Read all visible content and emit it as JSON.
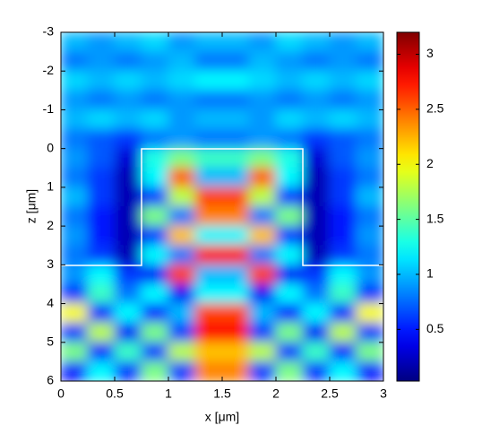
{
  "chart_data": {
    "type": "heatmap",
    "colormap": "jet",
    "xlabel": "x [μm]",
    "ylabel": "z [μm]",
    "x": [
      0,
      0.25,
      0.5,
      0.75,
      1,
      1.25,
      1.5,
      1.75,
      2,
      2.25,
      2.5,
      2.75,
      3
    ],
    "z": [
      -3,
      -2.5,
      -2,
      -1.5,
      -1,
      -0.5,
      0,
      0.5,
      1,
      1.5,
      2,
      2.5,
      3,
      3.5,
      4,
      4.5,
      5,
      5.5,
      6
    ],
    "values": [
      [
        1.0,
        0.9,
        1.0,
        1.1,
        0.9,
        1.0,
        1.0,
        0.9,
        1.1,
        1.0,
        0.9,
        1.0
      ],
      [
        0.8,
        0.9,
        0.8,
        0.9,
        1.0,
        0.8,
        0.8,
        1.0,
        0.9,
        0.8,
        0.9,
        0.8
      ],
      [
        1.1,
        1.0,
        1.1,
        1.0,
        1.1,
        1.2,
        1.2,
        1.1,
        1.0,
        1.1,
        1.0,
        1.1
      ],
      [
        0.9,
        0.8,
        0.9,
        0.8,
        0.9,
        0.8,
        0.8,
        0.9,
        0.8,
        0.9,
        0.8,
        0.9
      ],
      [
        1.0,
        1.1,
        1.0,
        1.1,
        0.9,
        1.0,
        1.0,
        0.9,
        1.1,
        1.0,
        1.1,
        1.0
      ],
      [
        0.8,
        0.7,
        0.6,
        0.8,
        0.9,
        0.8,
        0.8,
        0.9,
        0.8,
        0.6,
        0.7,
        0.8
      ],
      [
        0.9,
        0.7,
        0.3,
        1.3,
        1.6,
        1.4,
        1.4,
        1.6,
        1.3,
        0.3,
        0.7,
        0.9
      ],
      [
        0.8,
        0.6,
        0.2,
        1.2,
        2.5,
        1.0,
        1.0,
        2.5,
        1.2,
        0.2,
        0.6,
        0.8
      ],
      [
        1.0,
        0.6,
        0.2,
        0.6,
        1.8,
        2.6,
        2.6,
        1.8,
        0.6,
        0.2,
        0.6,
        1.0
      ],
      [
        0.8,
        0.5,
        0.2,
        1.6,
        0.8,
        2.4,
        2.4,
        0.8,
        1.6,
        0.2,
        0.5,
        0.8
      ],
      [
        0.9,
        0.5,
        0.2,
        0.6,
        2.2,
        1.2,
        1.2,
        2.2,
        0.6,
        0.2,
        0.5,
        0.9
      ],
      [
        0.8,
        0.6,
        0.2,
        1.2,
        0.8,
        2.8,
        2.8,
        0.8,
        1.2,
        0.2,
        0.6,
        0.8
      ],
      [
        0.9,
        1.2,
        0.6,
        0.4,
        2.6,
        1.0,
        1.0,
        2.6,
        0.4,
        0.6,
        1.2,
        0.9
      ],
      [
        0.6,
        1.4,
        0.8,
        1.2,
        0.4,
        1.2,
        1.2,
        0.4,
        1.2,
        0.8,
        1.4,
        0.6
      ],
      [
        2.0,
        0.5,
        1.2,
        0.5,
        1.0,
        2.6,
        2.6,
        1.0,
        0.5,
        1.2,
        0.5,
        2.0
      ],
      [
        0.6,
        1.8,
        0.4,
        1.6,
        0.6,
        2.8,
        2.8,
        0.6,
        1.6,
        0.4,
        1.8,
        0.6
      ],
      [
        1.6,
        0.5,
        1.4,
        0.6,
        1.8,
        2.2,
        2.2,
        1.8,
        0.6,
        1.4,
        0.5,
        1.6
      ],
      [
        0.5,
        1.2,
        0.6,
        1.6,
        0.6,
        2.4,
        2.4,
        0.6,
        1.6,
        0.6,
        1.2,
        0.5
      ]
    ],
    "xlim": [
      0,
      3
    ],
    "xticks": [
      0,
      0.5,
      1,
      1.5,
      2,
      2.5,
      3
    ],
    "ylim": [
      -3,
      6
    ],
    "yticks": [
      -3,
      -2,
      -1,
      0,
      1,
      2,
      3,
      4,
      5,
      6
    ],
    "y_inverted": true,
    "clim": [
      0.03,
      3.2
    ],
    "colorbar_ticks": [
      0.5,
      1,
      1.5,
      2,
      2.5,
      3
    ]
  }
}
